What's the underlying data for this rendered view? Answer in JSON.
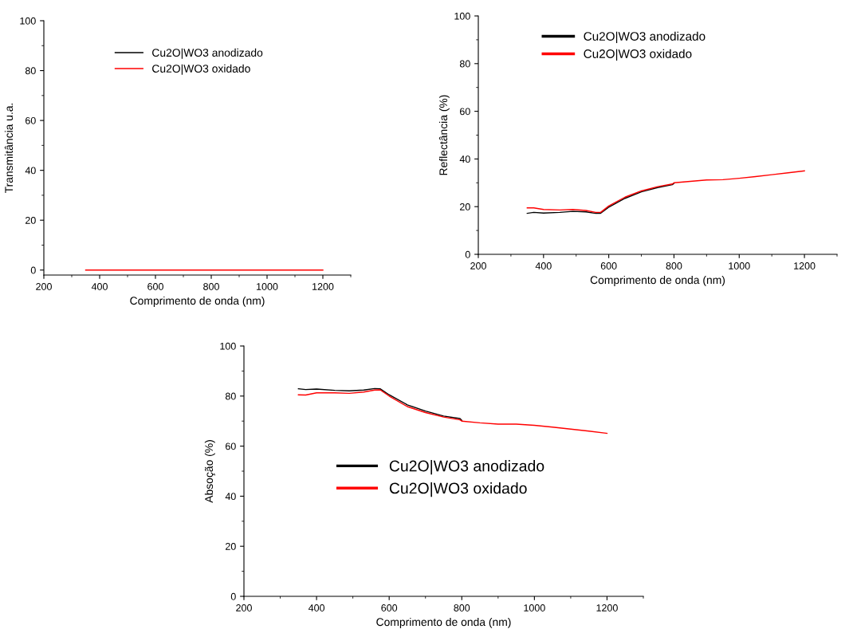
{
  "chart_data": [
    {
      "type": "line",
      "xlabel": "Comprimento de onda (nm)",
      "ylabel": "Transmitância u.a.",
      "xlim": [
        200,
        1300
      ],
      "xticks": [
        200,
        400,
        600,
        800,
        1000,
        1200
      ],
      "ylim": [
        -2,
        100
      ],
      "yticks": [
        0,
        20,
        40,
        60,
        80,
        100
      ],
      "legend": "top",
      "grid": false,
      "series": [
        {
          "name": "Cu2O|WO3 anodizado",
          "color": "#000000"
        },
        {
          "name": "Cu2O|WO3 oxidado",
          "color": "#ff0000",
          "x": [
            350,
            1200
          ],
          "values": [
            0,
            0
          ]
        }
      ]
    },
    {
      "type": "line",
      "xlabel": "Comprimento de onda (nm)",
      "ylabel": "Reflectância (%)",
      "xlim": [
        200,
        1300
      ],
      "xticks": [
        200,
        400,
        600,
        800,
        1000,
        1200
      ],
      "ylim": [
        0,
        100
      ],
      "yticks": [
        0,
        20,
        40,
        60,
        80,
        100
      ],
      "legend": "top left",
      "grid": false,
      "series": [
        {
          "name": "Cu2O|WO3 anodizado",
          "color": "#000000",
          "x": [
            350,
            370,
            400,
            450,
            490,
            530,
            560,
            575,
            600,
            650,
            700,
            750,
            795,
            800
          ],
          "values": [
            17.2,
            17.6,
            17.3,
            17.6,
            18.0,
            17.8,
            17.2,
            17.2,
            19.8,
            23.5,
            26.2,
            28.0,
            29.2,
            29.8
          ]
        },
        {
          "name": "Cu2O|WO3 oxidado",
          "color": "#ff0000",
          "x": [
            350,
            370,
            400,
            450,
            490,
            530,
            560,
            575,
            600,
            650,
            700,
            750,
            795,
            800,
            850,
            900,
            950,
            1000,
            1050,
            1100,
            1150,
            1200
          ],
          "values": [
            19.5,
            19.5,
            18.8,
            18.6,
            18.8,
            18.4,
            17.6,
            17.6,
            20.3,
            24.0,
            26.6,
            28.4,
            29.5,
            30.0,
            30.6,
            31.2,
            31.3,
            31.9,
            32.6,
            33.4,
            34.2,
            35.0
          ]
        }
      ]
    },
    {
      "type": "line",
      "xlabel": "Comprimento de onda (nm)",
      "ylabel": "Absoção (%)",
      "xlim": [
        200,
        1300
      ],
      "xticks": [
        200,
        400,
        600,
        800,
        1000,
        1200
      ],
      "ylim": [
        0,
        100
      ],
      "yticks": [
        0,
        20,
        40,
        60,
        80,
        100
      ],
      "legend": "center",
      "grid": false,
      "series": [
        {
          "name": "Cu2O|WO3 anodizado",
          "color": "#000000",
          "x": [
            350,
            370,
            400,
            450,
            490,
            530,
            560,
            575,
            600,
            650,
            700,
            750,
            795,
            800
          ],
          "values": [
            82.9,
            82.6,
            82.8,
            82.3,
            82.1,
            82.4,
            83.0,
            82.9,
            80.5,
            76.5,
            74.0,
            72.0,
            71.0,
            70.3
          ]
        },
        {
          "name": "Cu2O|WO3 oxidado",
          "color": "#ff0000",
          "x": [
            350,
            370,
            400,
            450,
            490,
            530,
            560,
            575,
            600,
            650,
            700,
            750,
            795,
            800,
            850,
            900,
            950,
            1000,
            1050,
            1100,
            1150,
            1200
          ],
          "values": [
            80.5,
            80.4,
            81.3,
            81.3,
            81.1,
            81.6,
            82.4,
            82.5,
            80.0,
            75.8,
            73.4,
            71.6,
            70.5,
            70.0,
            69.3,
            68.8,
            68.8,
            68.3,
            67.6,
            66.8,
            66.0,
            65.1
          ]
        }
      ]
    }
  ]
}
